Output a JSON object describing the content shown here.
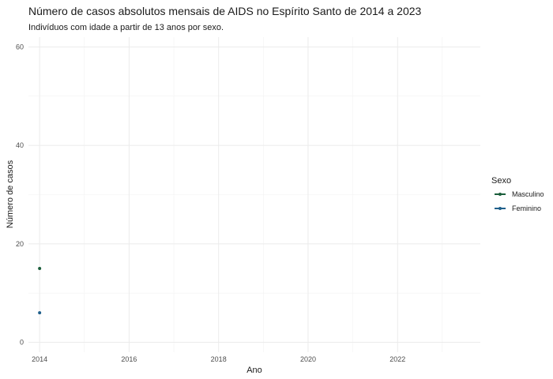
{
  "chart_data": {
    "type": "line",
    "title": "Número de casos absolutos mensais de AIDS no Espírito Santo de 2014 a 2023",
    "subtitle": "Indivíduos com idade a partir de 13 anos por sexo.",
    "xlabel": "Ano",
    "ylabel": "Número de casos",
    "xlim": [
      2013.75,
      2023.85
    ],
    "ylim": [
      -2,
      62
    ],
    "x_ticks": [
      2014,
      2016,
      2018,
      2020,
      2022
    ],
    "x_tick_labels": [
      "2014",
      "2016",
      "2018",
      "2020",
      "2022"
    ],
    "y_ticks": [
      0,
      20,
      40,
      60
    ],
    "y_tick_labels": [
      "0",
      "20",
      "40",
      "60"
    ],
    "grid": true,
    "legend": {
      "title": "Sexo",
      "position": "right"
    },
    "series": [
      {
        "name": "Masculino",
        "color": "#1b5e3b",
        "x": [
          2014
        ],
        "y": [
          15
        ]
      },
      {
        "name": "Feminino",
        "color": "#1f5f8b",
        "x": [
          2014
        ],
        "y": [
          6
        ]
      }
    ]
  }
}
